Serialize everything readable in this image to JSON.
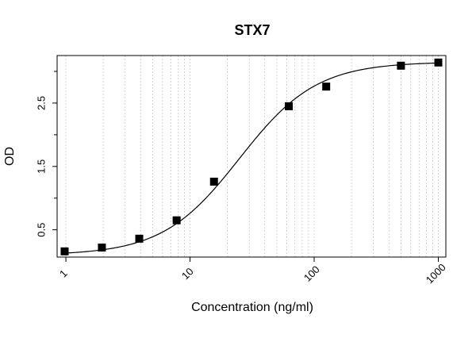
{
  "chart_data": {
    "type": "scatter",
    "title": "STX7",
    "xlabel": "Concentration (ng/ml)",
    "ylabel": "OD",
    "x_scale": "log",
    "xlim": [
      0.85,
      1150
    ],
    "ylim": [
      0.07,
      3.25
    ],
    "x_ticks": [
      1,
      10,
      100,
      1000
    ],
    "x_tick_labels": [
      "1",
      "10",
      "100",
      "1000"
    ],
    "y_ticks": [
      0.5,
      1.5,
      2.5
    ],
    "y_tick_labels": [
      "0.5",
      "1.5",
      "2.5"
    ],
    "y_minor_ticks": [
      1.0,
      2.0,
      3.0
    ],
    "grid": "vertical dashed at log minor positions",
    "legend": "none",
    "series": [
      {
        "x": [
          0.977,
          1.95,
          3.9,
          7.8,
          15.6,
          62.5,
          125,
          500,
          1000
        ],
        "y": [
          0.16,
          0.22,
          0.36,
          0.65,
          1.26,
          2.45,
          2.76,
          3.09,
          3.14
        ]
      }
    ],
    "fit_curve": {
      "model": "4PL",
      "bottom": 0.1,
      "top": 3.15,
      "ec50": 25,
      "hill": 1.4
    },
    "colors": {
      "marker": "#000000",
      "curve": "#000000",
      "grid": "#c8c8c8",
      "frame": "#000000"
    }
  }
}
